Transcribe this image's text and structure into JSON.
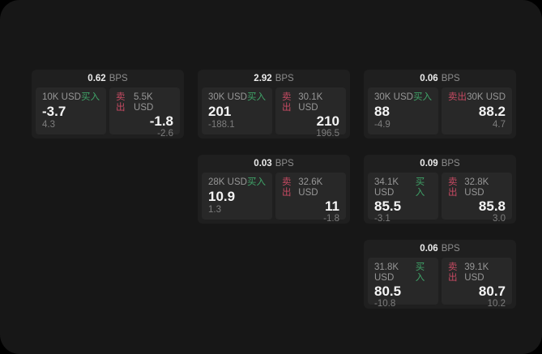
{
  "meta": {
    "unit_label": "BPS",
    "buy_label": "买入",
    "sell_label": "卖出",
    "colors": {
      "buy_green": "#3fa368",
      "sell_red": "#c64a62",
      "outer_bg": "#000000",
      "panel_bg": "#171717",
      "card_bg": "#1f1f1f",
      "tile_bg": "#282828",
      "price_text": "#f5f5f5",
      "muted_text": "#979797"
    }
  },
  "cards": [
    {
      "bps": "0.62",
      "buy": {
        "size": "10K USD",
        "side": "买入",
        "price": "-3.7",
        "delta": "4.3"
      },
      "sell": {
        "side": "卖出",
        "size": "5.5K USD",
        "price": "-1.8",
        "delta": "-2.6"
      }
    },
    {
      "bps": "2.92",
      "buy": {
        "size": "30K USD",
        "side": "买入",
        "price": "201",
        "delta": "-188.1"
      },
      "sell": {
        "side": "卖出",
        "size": "30.1K USD",
        "price": "210",
        "delta": "196.5"
      }
    },
    {
      "bps": "0.03",
      "buy": {
        "size": "28K USD",
        "side": "买入",
        "price": "10.9",
        "delta": "1.3"
      },
      "sell": {
        "side": "卖出",
        "size": "32.6K USD",
        "price": "11",
        "delta": "-1.8"
      }
    },
    {
      "bps": "0.06",
      "buy": {
        "size": "30K USD",
        "side": "买入",
        "price": "88",
        "delta": "-4.9"
      },
      "sell": {
        "side": "卖出",
        "size": "30K USD",
        "price": "88.2",
        "delta": "4.7"
      }
    },
    {
      "bps": "0.09",
      "buy": {
        "size": "34.1K USD",
        "side": "买入",
        "price": "85.5",
        "delta": "-3.1"
      },
      "sell": {
        "side": "卖出",
        "size": "32.8K USD",
        "price": "85.8",
        "delta": "3.0"
      }
    },
    {
      "bps": "0.06",
      "buy": {
        "size": "31.8K USD",
        "side": "买入",
        "price": "80.5",
        "delta": "-10.8"
      },
      "sell": {
        "side": "卖出",
        "size": "39.1K USD",
        "price": "80.7",
        "delta": "10.2"
      }
    }
  ]
}
